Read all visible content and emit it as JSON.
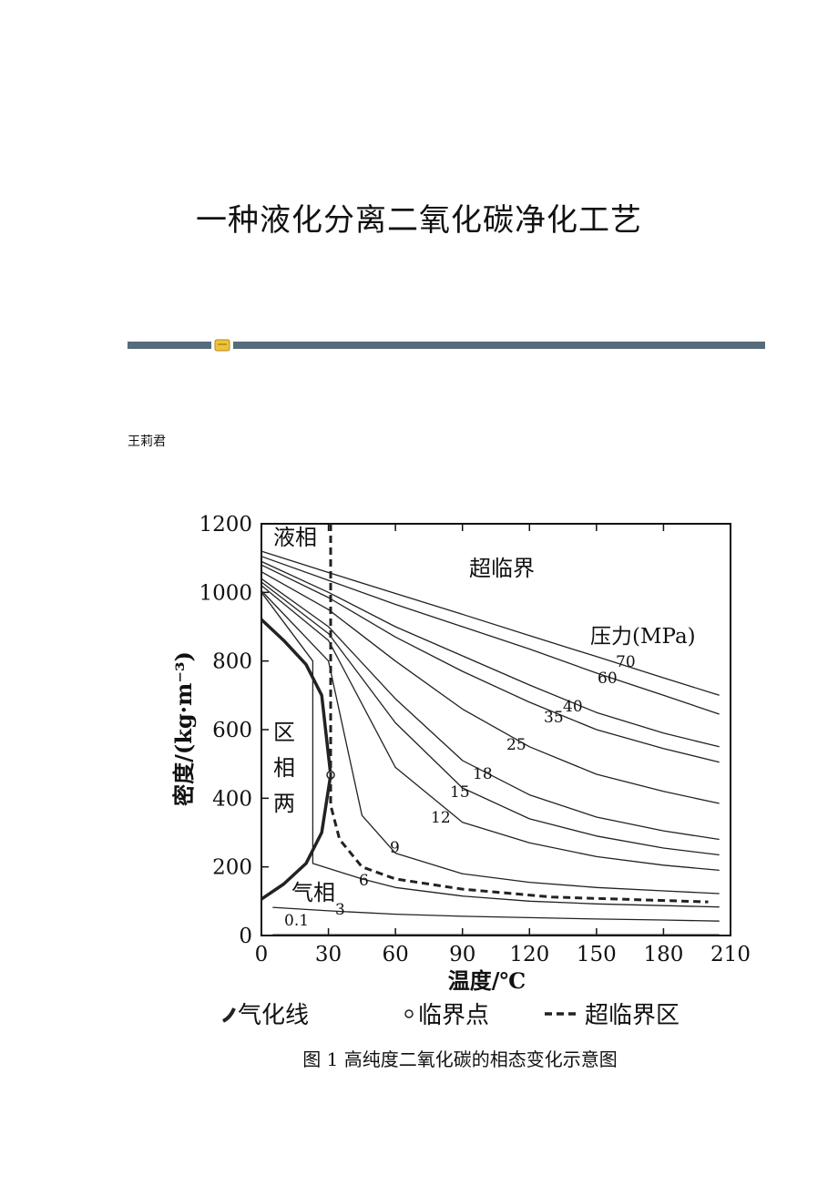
{
  "header": {
    "title": "一种液化分离二氧化碳净化工艺"
  },
  "author": "王莉君",
  "chart_data": {
    "type": "line",
    "ylabel": "密度/(kg·m⁻³)",
    "xlabel": "温度/℃",
    "xlim": [
      0,
      210
    ],
    "xticks": [
      0,
      30,
      60,
      90,
      120,
      150,
      180,
      210
    ],
    "ylim": [
      0,
      1200
    ],
    "yticks": [
      0,
      200,
      400,
      600,
      800,
      1000,
      1200
    ],
    "annotations": [
      "液相",
      "超临界",
      "压力(MPa)",
      "区",
      "相",
      "两",
      "气相"
    ],
    "series": [
      {
        "name": "70",
        "style": "thin",
        "color": "#222222",
        "x": [
          0,
          30,
          60,
          90,
          120,
          150,
          180,
          205
        ],
        "values": [
          1120,
          1058,
          997,
          936,
          874,
          813,
          751,
          700
        ]
      },
      {
        "name": "60",
        "style": "thin",
        "color": "#222222",
        "x": [
          0,
          30,
          60,
          90,
          120,
          150,
          180,
          205
        ],
        "values": [
          1105,
          1035,
          965,
          900,
          835,
          765,
          700,
          645
        ]
      },
      {
        "name": "40",
        "style": "thin",
        "color": "#222222",
        "x": [
          0,
          30,
          60,
          90,
          120,
          150,
          180,
          205
        ],
        "values": [
          1090,
          1000,
          900,
          815,
          730,
          650,
          590,
          550
        ]
      },
      {
        "name": "35",
        "style": "thin",
        "color": "#222222",
        "x": [
          0,
          30,
          60,
          90,
          120,
          150,
          180,
          205
        ],
        "values": [
          1080,
          985,
          870,
          770,
          680,
          600,
          545,
          505
        ]
      },
      {
        "name": "25",
        "style": "thin",
        "color": "#222222",
        "x": [
          0,
          30,
          60,
          90,
          120,
          150,
          180,
          205
        ],
        "values": [
          1060,
          950,
          800,
          660,
          550,
          470,
          420,
          385
        ]
      },
      {
        "name": "18",
        "style": "thin",
        "color": "#222222",
        "x": [
          0,
          30,
          60,
          90,
          120,
          150,
          180,
          205
        ],
        "values": [
          1040,
          900,
          690,
          510,
          410,
          345,
          305,
          280
        ]
      },
      {
        "name": "15",
        "style": "thin",
        "color": "#222222",
        "x": [
          0,
          30,
          60,
          90,
          120,
          150,
          180,
          205
        ],
        "values": [
          1030,
          880,
          620,
          430,
          340,
          290,
          255,
          235
        ]
      },
      {
        "name": "12",
        "style": "thin",
        "color": "#222222",
        "x": [
          0,
          30,
          60,
          90,
          120,
          150,
          180,
          205
        ],
        "values": [
          1020,
          860,
          490,
          330,
          270,
          230,
          205,
          190
        ]
      },
      {
        "name": "9",
        "style": "thin",
        "color": "#222222",
        "x": [
          0,
          30,
          45,
          60,
          90,
          120,
          150,
          180,
          205
        ],
        "values": [
          1005,
          800,
          350,
          240,
          180,
          155,
          140,
          130,
          122
        ]
      },
      {
        "name": "6",
        "style": "thin",
        "color": "#222222",
        "x": [
          0,
          23,
          23,
          45,
          60,
          90,
          120,
          150,
          180,
          205
        ],
        "values": [
          1000,
          800,
          210,
          165,
          140,
          115,
          100,
          92,
          87,
          83
        ]
      },
      {
        "name": "3",
        "style": "thin",
        "color": "#222222",
        "x": [
          5,
          30,
          60,
          90,
          120,
          150,
          180,
          205
        ],
        "values": [
          82,
          72,
          62,
          56,
          52,
          48,
          45,
          42
        ]
      },
      {
        "name": "0.1",
        "style": "thin",
        "color": "#222222",
        "x": [
          5,
          205
        ],
        "values": [
          2,
          2
        ]
      },
      {
        "name": "气化线",
        "style": "thick",
        "color": "#222222",
        "x": [
          0,
          10,
          20,
          27,
          31,
          27,
          20,
          10,
          0
        ],
        "values": [
          106,
          150,
          210,
          300,
          468,
          700,
          790,
          860,
          921
        ]
      },
      {
        "name": "临界点",
        "style": "point",
        "color": "#222222",
        "x": [
          31
        ],
        "values": [
          468
        ]
      },
      {
        "name": "超临界区",
        "style": "dashed",
        "color": "#222222",
        "x": [
          31,
          31,
          31,
          35,
          45,
          60,
          90,
          130,
          200
        ],
        "values": [
          1200,
          468,
          380,
          280,
          200,
          165,
          135,
          112,
          98
        ]
      }
    ]
  },
  "caption": "图 1 高纯度二氧化碳的相态变化示意图"
}
